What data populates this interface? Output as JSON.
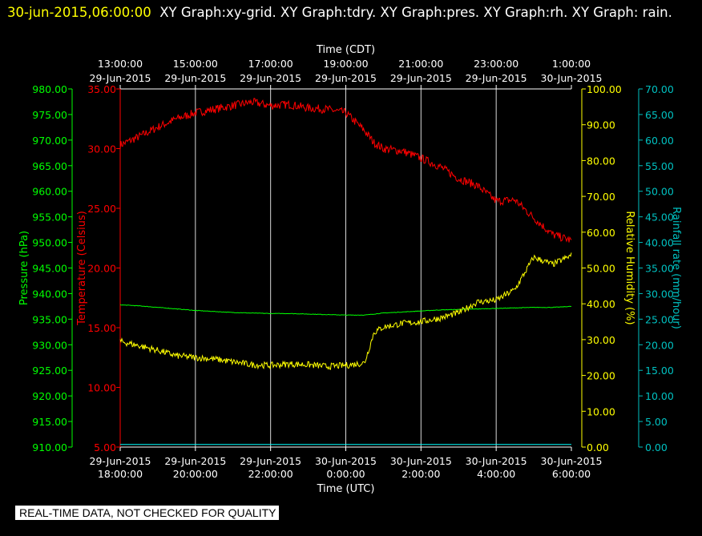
{
  "header": {
    "timestamp": "30-jun-2015,06:00:00",
    "graphs_text": "XY Graph:xy-grid.  XY Graph:tdry.  XY Graph:pres.  XY Graph:rh.  XY Graph: rain."
  },
  "notice": "REAL-TIME DATA, NOT CHECKED FOR QUALITY",
  "colors": {
    "background": "#000000",
    "grid": "#ffffff",
    "pressure": "#00ff00",
    "temperature": "#ff0000",
    "humidity": "#ffff00",
    "rain": "#00ffff",
    "rain_axis": "#00c0c0"
  },
  "chart_data": {
    "type": "line",
    "title": "",
    "grid": true,
    "x_axis_top": {
      "label": "Time (CDT)",
      "ticks": [
        {
          "time": "13:00:00",
          "date": "29-Jun-2015"
        },
        {
          "time": "15:00:00",
          "date": "29-Jun-2015"
        },
        {
          "time": "17:00:00",
          "date": "29-Jun-2015"
        },
        {
          "time": "19:00:00",
          "date": "29-Jun-2015"
        },
        {
          "time": "21:00:00",
          "date": "29-Jun-2015"
        },
        {
          "time": "23:00:00",
          "date": "29-Jun-2015"
        },
        {
          "time": "1:00:00",
          "date": "30-Jun-2015"
        }
      ]
    },
    "x_axis_bottom": {
      "label": "Time (UTC)",
      "range": [
        "29-Jun-2015 18:00:00",
        "30-Jun-2015 06:00:00"
      ],
      "ticks": [
        {
          "date": "29-Jun-2015",
          "time": "18:00:00"
        },
        {
          "date": "29-Jun-2015",
          "time": "20:00:00"
        },
        {
          "date": "29-Jun-2015",
          "time": "22:00:00"
        },
        {
          "date": "30-Jun-2015",
          "time": "0:00:00"
        },
        {
          "date": "30-Jun-2015",
          "time": "2:00:00"
        },
        {
          "date": "30-Jun-2015",
          "time": "4:00:00"
        },
        {
          "date": "30-Jun-2015",
          "time": "6:00:00"
        }
      ]
    },
    "x_hours_utc": [
      18,
      18.5,
      19,
      19.5,
      20,
      20.5,
      21,
      21.5,
      22,
      22.5,
      23,
      23.5,
      24,
      24.5,
      24.75,
      25,
      25.5,
      26,
      26.5,
      27,
      27.5,
      28,
      28.5,
      29,
      29.5,
      30
    ],
    "axes": {
      "pressure": {
        "label": "Pressure (hPa)",
        "range": [
          910,
          980
        ],
        "ticks": [
          "980.00",
          "975.00",
          "970.00",
          "965.00",
          "960.00",
          "955.00",
          "950.00",
          "945.00",
          "940.00",
          "935.00",
          "930.00",
          "925.00",
          "920.00",
          "915.00",
          "910.00"
        ]
      },
      "temperature": {
        "label": "Temperature (Celsius)",
        "range": [
          5,
          35
        ],
        "ticks": [
          "35.00",
          "30.00",
          "25.00",
          "20.00",
          "15.00",
          "10.00",
          "5.00"
        ]
      },
      "humidity": {
        "label": "Relative Humidity (%)",
        "range": [
          0,
          100
        ],
        "ticks": [
          "100.00",
          "90.00",
          "80.00",
          "70.00",
          "60.00",
          "50.00",
          "40.00",
          "30.00",
          "20.00",
          "10.00",
          "0.00"
        ]
      },
      "rain": {
        "label": "Rainfall rate (mm/hour)",
        "range": [
          0,
          70
        ],
        "ticks": [
          "70.00",
          "65.00",
          "60.00",
          "55.00",
          "50.00",
          "45.00",
          "40.00",
          "35.00",
          "30.00",
          "25.00",
          "20.00",
          "15.00",
          "10.00",
          "5.00",
          "0.00"
        ]
      }
    },
    "series": [
      {
        "name": "Temperature (Celsius)",
        "axis": "temperature",
        "values": [
          30.3,
          31.0,
          31.8,
          32.5,
          33.0,
          33.3,
          33.6,
          33.9,
          33.6,
          33.7,
          33.4,
          33.3,
          33.0,
          31.5,
          30.5,
          30.0,
          29.8,
          29.2,
          28.5,
          27.5,
          26.9,
          25.6,
          25.7,
          24.2,
          22.8,
          22.3
        ]
      },
      {
        "name": "Pressure (hPa)",
        "axis": "pressure",
        "values": [
          937.8,
          937.6,
          937.3,
          937.0,
          936.7,
          936.5,
          936.3,
          936.2,
          936.1,
          936.1,
          936.0,
          935.9,
          935.8,
          935.8,
          936.0,
          936.2,
          936.4,
          936.6,
          936.8,
          936.9,
          937.0,
          937.1,
          937.2,
          937.3,
          937.3,
          937.5
        ]
      },
      {
        "name": "Relative Humidity (%)",
        "axis": "humidity",
        "values": [
          29.5,
          28.3,
          27.0,
          25.5,
          25.0,
          24.6,
          23.8,
          23.0,
          22.8,
          23.2,
          23.0,
          22.5,
          22.8,
          23.5,
          32.0,
          33.5,
          34.5,
          35.0,
          36.0,
          37.5,
          40.5,
          41.0,
          44.0,
          53.0,
          51.0,
          53.5
        ]
      },
      {
        "name": "Rainfall rate (mm/hour)",
        "axis": "rain",
        "values": [
          0.5,
          0.5,
          0.5,
          0.5,
          0.5,
          0.5,
          0.5,
          0.5,
          0.5,
          0.5,
          0.5,
          0.5,
          0.5,
          0.5,
          0.5,
          0.5,
          0.5,
          0.5,
          0.5,
          0.5,
          0.5,
          0.5,
          0.5,
          0.5,
          0.5,
          0.5
        ]
      }
    ]
  }
}
